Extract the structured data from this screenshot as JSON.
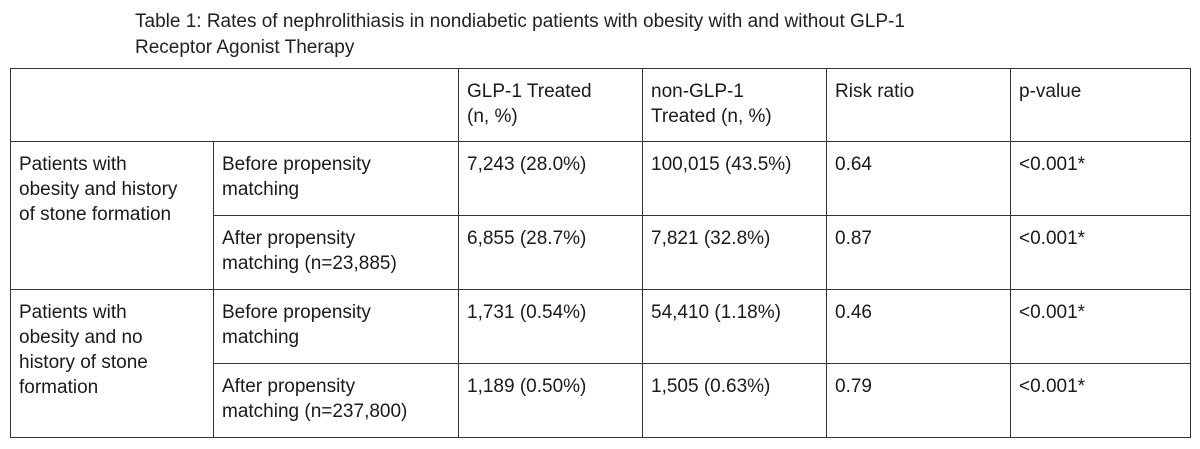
{
  "caption": {
    "line1": "Table 1: Rates of nephrolithiasis in nondiabetic patients with obesity with and without GLP-1",
    "line2": "Receptor Agonist Therapy"
  },
  "table": {
    "headers": {
      "glp1_line1": "GLP-1 Treated",
      "glp1_line2": "(n, %)",
      "non_line1": "non-GLP-1",
      "non_line2": "Treated (n, %)",
      "risk": "Risk ratio",
      "p": "p-value"
    },
    "groups": [
      {
        "label_lines": [
          "Patients with",
          "obesity and history",
          "of stone formation"
        ],
        "rows": [
          {
            "label_lines": [
              "Before propensity",
              "matching"
            ],
            "glp1": "7,243 (28.0%)",
            "non": "100,015 (43.5%)",
            "risk": "0.64",
            "p": "<0.001*"
          },
          {
            "label_lines": [
              "After propensity",
              "matching (n=23,885)"
            ],
            "glp1": "6,855 (28.7%)",
            "non": "7,821 (32.8%)",
            "risk": "0.87",
            "p": "<0.001*"
          }
        ]
      },
      {
        "label_lines": [
          "Patients with",
          "obesity and no",
          "history of stone",
          "formation"
        ],
        "rows": [
          {
            "label_lines": [
              "Before propensity",
              "matching"
            ],
            "glp1": "1,731 (0.54%)",
            "non": "54,410 (1.18%)",
            "risk": "0.46",
            "p": "<0.001*"
          },
          {
            "label_lines": [
              "After propensity",
              "matching (n=237,800)"
            ],
            "glp1": "1,189 (0.50%)",
            "non": "1,505 (0.63%)",
            "risk": "0.79",
            "p": "<0.001*"
          }
        ]
      }
    ]
  }
}
